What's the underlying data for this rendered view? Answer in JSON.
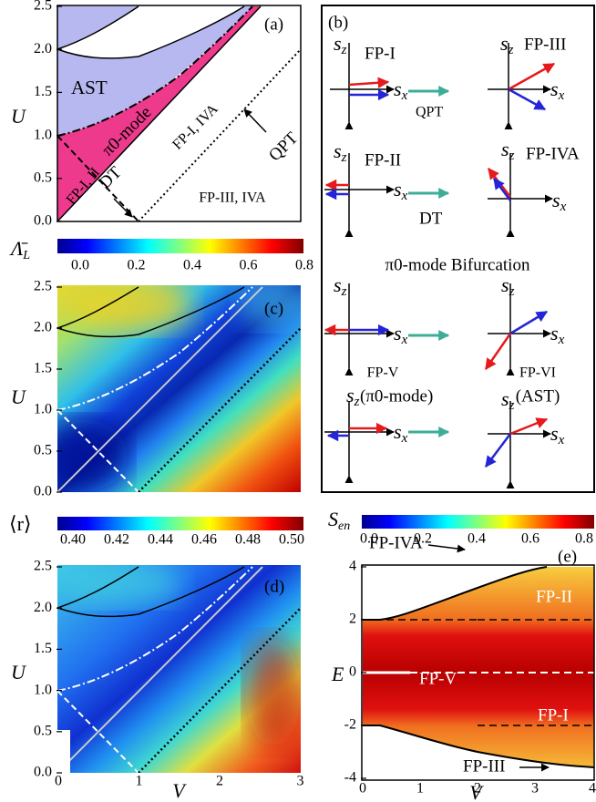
{
  "panel_a": {
    "label": "(a)",
    "y_axis": "U",
    "yticks": [
      "0.0",
      "0.5",
      "1.0",
      "1.5",
      "2.0",
      "2.5"
    ],
    "annotations": {
      "ast": "AST",
      "pi0": "π0-mode",
      "fp_i_iva": "FP-I, IVA",
      "qpt": "QPT",
      "fp_i_ii": "FP-I, II",
      "dt": "DT",
      "fp_iii_iva": "FP-III, IVA"
    }
  },
  "panel_b": {
    "label": "(b)",
    "axis": {
      "s": "s",
      "z": "z",
      "x": "x"
    },
    "fp_i": "FP-I",
    "fp_iii": "FP-III",
    "qpt": "QPT",
    "fp_ii": "FP-II",
    "fp_iva": "FP-IVA",
    "dt": "DT",
    "bifurcation": "π0-mode Bifurcation",
    "fp_v": "FP-V",
    "fp_vi": "FP-VI",
    "pi0_mode": "(π0-mode)",
    "ast": "(AST)"
  },
  "panel_c": {
    "label": "(c)",
    "colorbar_label": "Λ̄",
    "colorbar_sub": "L",
    "colorbar_ticks": [
      "0.0",
      "0.2",
      "0.4",
      "0.6",
      "0.8"
    ],
    "y_axis": "U",
    "yticks": [
      "0.0",
      "0.5",
      "1.0",
      "1.5",
      "2.0",
      "2.5"
    ]
  },
  "panel_d": {
    "label": "(d)",
    "colorbar_label": "⟨r⟩",
    "colorbar_ticks": [
      "0.40",
      "0.42",
      "0.44",
      "0.46",
      "0.48",
      "0.50"
    ],
    "y_axis": "U",
    "yticks": [
      "0.0",
      "0.5",
      "1.0",
      "1.5",
      "2.0",
      "2.5"
    ],
    "x_axis": "V",
    "xticks": [
      "0",
      "1",
      "2",
      "3"
    ]
  },
  "panel_e": {
    "label": "(e)",
    "colorbar_label": "S",
    "colorbar_sub": "en",
    "colorbar_ticks": [
      "0.0",
      "0.2",
      "0.4",
      "0.6",
      "0.8"
    ],
    "y_axis": "E",
    "yticks": [
      "-4",
      "-2",
      "0",
      "2",
      "4"
    ],
    "x_axis": "V",
    "xticks": [
      "0",
      "1",
      "2",
      "3",
      "4"
    ],
    "annotations": {
      "fp_iva": "FP-IVA",
      "fp_ii": "FP-II",
      "fp_v": "FP-V",
      "fp_i": "FP-I",
      "fp_iii": "FP-III"
    }
  }
}
